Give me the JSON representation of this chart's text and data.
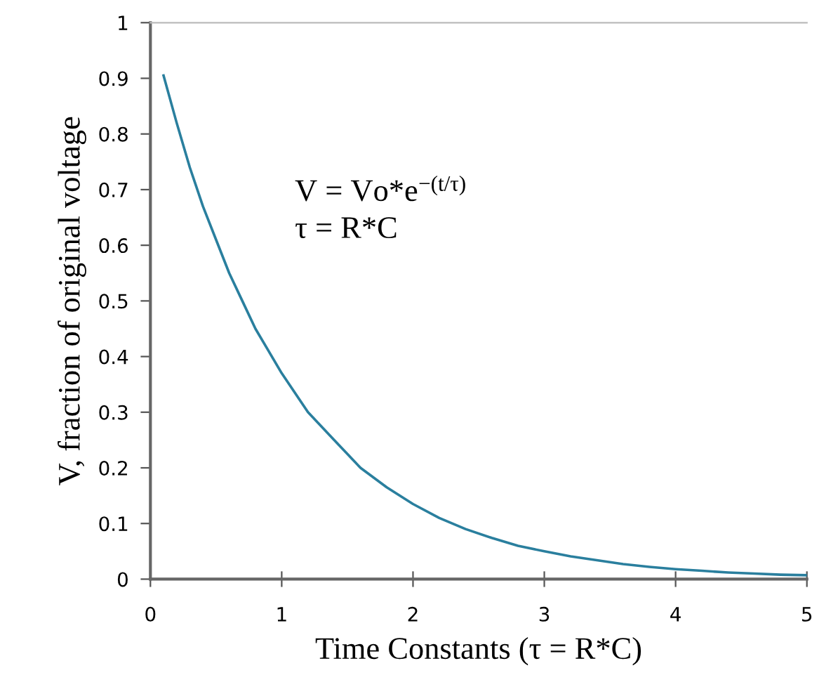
{
  "chart_data": {
    "type": "line",
    "xlabel": "Time Constants (τ = R*C)",
    "ylabel": "V, fraction of original voltage",
    "xlim": [
      0,
      5
    ],
    "ylim": [
      0,
      1
    ],
    "xticks": [
      0,
      1,
      2,
      3,
      4,
      5
    ],
    "yticks": [
      0,
      0.1,
      0.2,
      0.3,
      0.4,
      0.5,
      0.6,
      0.7,
      0.8,
      0.9,
      1
    ],
    "grid": false,
    "marker": "none",
    "line_style": "solid",
    "annotations": [
      "V = Vo*e$^{−(t/τ)}$\nτ = R*C"
    ],
    "series": [
      {
        "color": "#2a7f9e",
        "x": [
          0.1,
          0.2,
          0.3,
          0.4,
          0.5,
          0.6,
          0.7,
          0.8,
          0.9,
          1.0,
          1.2,
          1.4,
          1.6,
          1.8,
          2.0,
          2.2,
          2.4,
          2.6,
          2.8,
          3.0,
          3.2,
          3.4,
          3.6,
          3.8,
          4.0,
          4.2,
          4.4,
          4.6,
          4.8,
          5.0
        ],
        "values": [
          0.905,
          0.82,
          0.74,
          0.67,
          0.61,
          0.55,
          0.5,
          0.45,
          0.41,
          0.37,
          0.3,
          0.25,
          0.2,
          0.165,
          0.135,
          0.11,
          0.09,
          0.074,
          0.06,
          0.05,
          0.041,
          0.034,
          0.027,
          0.022,
          0.018,
          0.015,
          0.012,
          0.01,
          0.008,
          0.007
        ]
      }
    ]
  }
}
